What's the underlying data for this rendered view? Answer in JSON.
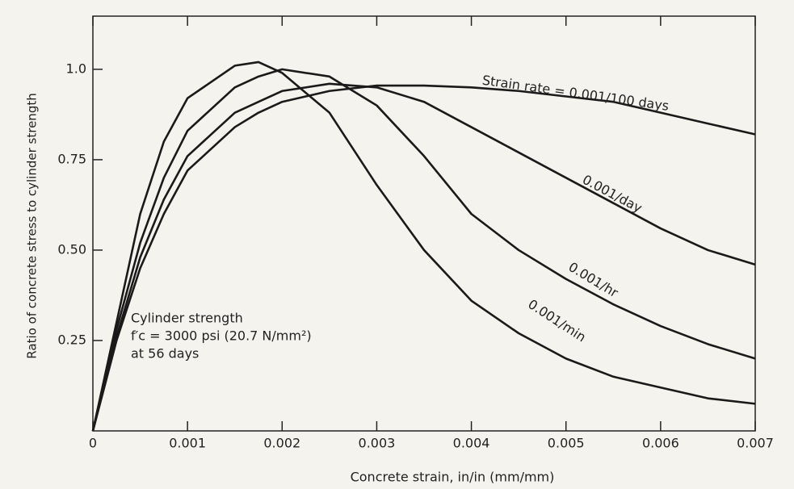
{
  "chart_data": {
    "type": "line",
    "xlabel": "Concrete strain, in/in (mm/mm)",
    "ylabel": "Ratio of concrete stress to cylinder strength",
    "x": [
      0,
      0.00025,
      0.0005,
      0.00075,
      0.001,
      0.0015,
      0.00175,
      0.002,
      0.0025,
      0.003,
      0.0035,
      0.004,
      0.0045,
      0.005,
      0.0055,
      0.006,
      0.0065,
      0.007
    ],
    "series": [
      {
        "name": "0.001/min",
        "color": "#1a1a1a",
        "values": [
          0,
          0.3,
          0.6,
          0.8,
          0.92,
          1.01,
          1.02,
          0.99,
          0.88,
          0.68,
          0.5,
          0.36,
          0.27,
          0.2,
          0.15,
          0.12,
          0.09,
          0.075
        ]
      },
      {
        "name": "0.001/hr",
        "color": "#1a1a1a",
        "values": [
          0,
          0.28,
          0.52,
          0.7,
          0.83,
          0.95,
          0.98,
          1.0,
          0.98,
          0.9,
          0.76,
          0.6,
          0.5,
          0.42,
          0.35,
          0.29,
          0.24,
          0.2
        ]
      },
      {
        "name": "0.001/day",
        "color": "#1a1a1a",
        "values": [
          0,
          0.26,
          0.48,
          0.64,
          0.76,
          0.88,
          0.91,
          0.94,
          0.96,
          0.95,
          0.91,
          0.84,
          0.77,
          0.7,
          0.63,
          0.56,
          0.5,
          0.46
        ]
      },
      {
        "name": "Strain rate = 0.001/100 days",
        "color": "#1a1a1a",
        "values": [
          0,
          0.25,
          0.45,
          0.6,
          0.72,
          0.84,
          0.88,
          0.91,
          0.94,
          0.955,
          0.955,
          0.95,
          0.94,
          0.925,
          0.91,
          0.88,
          0.85,
          0.82
        ]
      }
    ],
    "annotation": [
      "Cylinder strength",
      "f′c = 3000 psi (20.7 N/mm²)",
      "at 56 days"
    ],
    "xlim": [
      0,
      0.007
    ],
    "xticks": [
      0,
      0.001,
      0.002,
      0.003,
      0.004,
      0.005,
      0.006,
      0.007
    ],
    "ylim": [
      0,
      1.147
    ],
    "yticks": [
      0.25,
      {
        "value": 0.5,
        "label": "0.50"
      },
      0.75,
      {
        "value": 1,
        "label": "1.0"
      }
    ],
    "grid": false
  }
}
